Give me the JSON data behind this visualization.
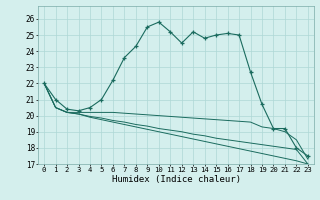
{
  "xlabel": "Humidex (Indice chaleur)",
  "background_color": "#d4efed",
  "grid_color": "#aed8d5",
  "line_color": "#1a6b5e",
  "xlim": [
    -0.5,
    23.5
  ],
  "ylim": [
    17,
    26.8
  ],
  "yticks": [
    17,
    18,
    19,
    20,
    21,
    22,
    23,
    24,
    25,
    26
  ],
  "xticks": [
    0,
    1,
    2,
    3,
    4,
    5,
    6,
    7,
    8,
    9,
    10,
    11,
    12,
    13,
    14,
    15,
    16,
    17,
    18,
    19,
    20,
    21,
    22,
    23
  ],
  "series1": [
    22.0,
    21.0,
    20.4,
    20.3,
    20.5,
    21.0,
    22.2,
    23.6,
    24.3,
    25.5,
    25.8,
    25.2,
    24.5,
    25.2,
    24.8,
    25.0,
    25.1,
    25.0,
    22.7,
    20.7,
    19.2,
    19.2,
    18.0,
    17.5
  ],
  "series2": [
    22.0,
    20.5,
    20.2,
    20.2,
    20.2,
    20.2,
    20.2,
    20.15,
    20.1,
    20.05,
    20.0,
    19.95,
    19.9,
    19.85,
    19.8,
    19.75,
    19.7,
    19.65,
    19.6,
    19.3,
    19.2,
    19.0,
    18.5,
    17.3
  ],
  "series3": [
    22.0,
    20.5,
    20.2,
    20.1,
    19.95,
    19.85,
    19.7,
    19.6,
    19.45,
    19.35,
    19.2,
    19.1,
    19.0,
    18.85,
    18.75,
    18.6,
    18.5,
    18.4,
    18.3,
    18.2,
    18.1,
    18.0,
    17.9,
    17.0
  ],
  "series4": [
    22.0,
    20.5,
    20.2,
    20.1,
    19.9,
    19.75,
    19.6,
    19.45,
    19.3,
    19.15,
    19.0,
    18.85,
    18.7,
    18.55,
    18.4,
    18.25,
    18.1,
    17.95,
    17.8,
    17.65,
    17.5,
    17.35,
    17.2,
    17.0
  ]
}
